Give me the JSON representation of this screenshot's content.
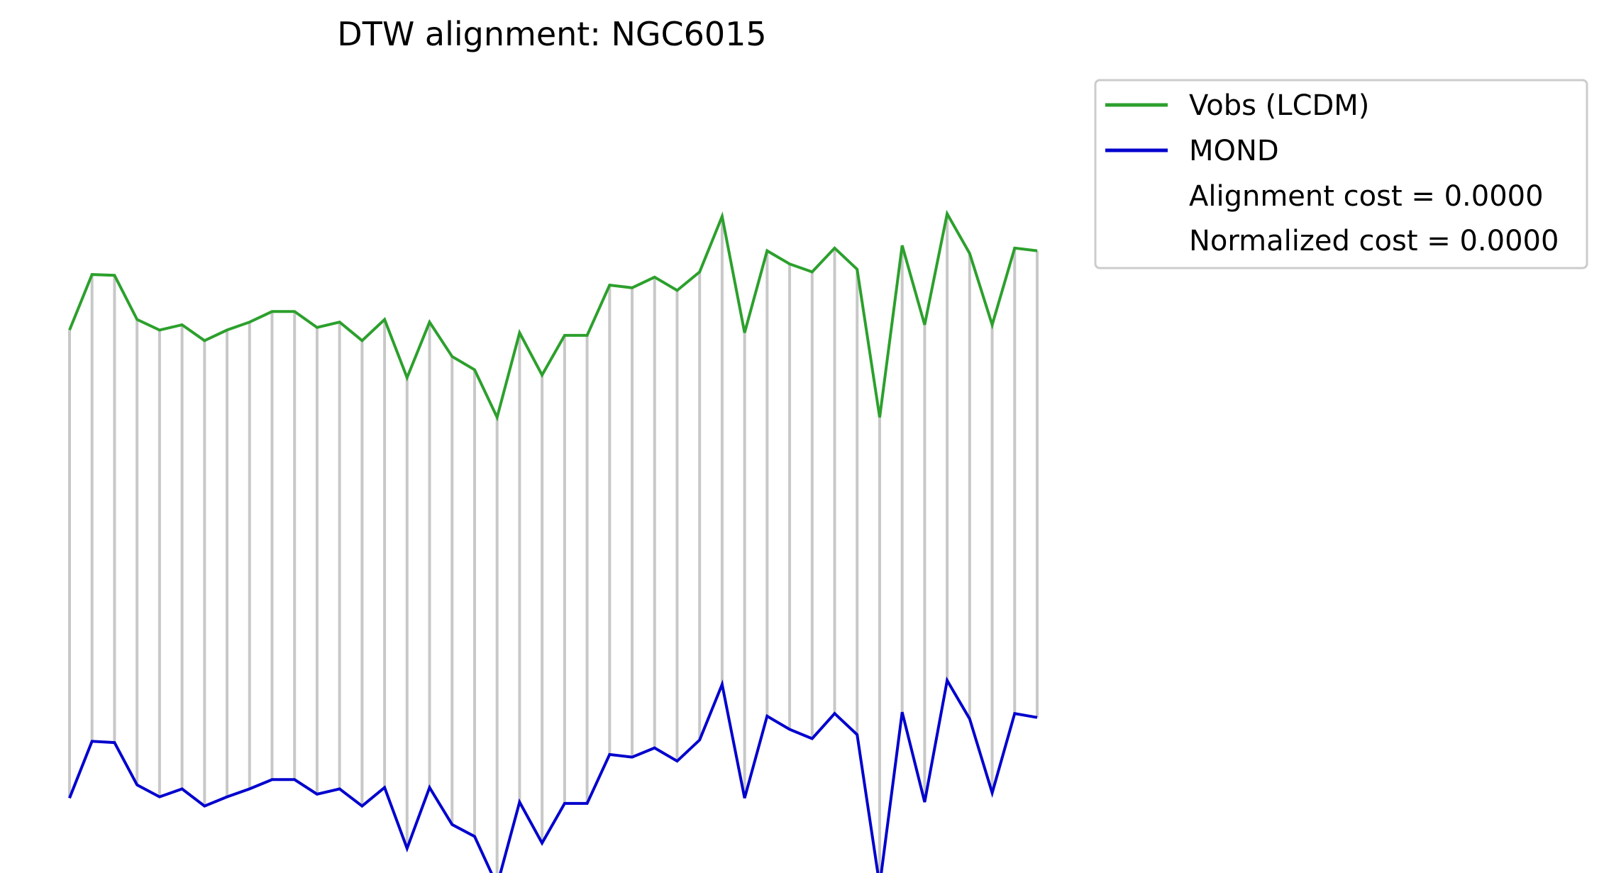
{
  "chart_data": {
    "type": "line",
    "title": "DTW alignment: NGC6015",
    "xlabel": "",
    "ylabel": "",
    "axes_visible": false,
    "grid": false,
    "legend_placement": "outside-top-right",
    "x": [
      0,
      1,
      2,
      3,
      4,
      5,
      6,
      7,
      8,
      9,
      10,
      11,
      12,
      13,
      14,
      15,
      16,
      17,
      18,
      19,
      20,
      21,
      22,
      23,
      24,
      25,
      26,
      27,
      28,
      29,
      30,
      31,
      32,
      33,
      34,
      35,
      36,
      37,
      38,
      39,
      40,
      41,
      42,
      43
    ],
    "ylim": [
      -1.2,
      1.75
    ],
    "series": [
      {
        "name": "Vobs (LCDM)",
        "color": "#2ca02c",
        "values": [
          0.77,
          0.98,
          0.977,
          0.81,
          0.77,
          0.79,
          0.73,
          0.77,
          0.8,
          0.84,
          0.84,
          0.78,
          0.8,
          0.73,
          0.81,
          0.59,
          0.8,
          0.67,
          0.62,
          0.44,
          0.76,
          0.6,
          0.75,
          0.75,
          0.94,
          0.93,
          0.97,
          0.92,
          0.99,
          1.2,
          0.76,
          1.07,
          1.02,
          0.99,
          1.08,
          1.0,
          0.44,
          1.09,
          0.79,
          1.21,
          1.06,
          0.79,
          1.08,
          1.07
        ]
      },
      {
        "name": "MOND",
        "color": "#0000cd",
        "values": [
          -1.0,
          -0.785,
          -0.79,
          -0.95,
          -0.995,
          -0.965,
          -1.03,
          -0.995,
          -0.965,
          -0.93,
          -0.93,
          -0.985,
          -0.965,
          -1.03,
          -0.96,
          -1.19,
          -0.96,
          -1.1,
          -1.145,
          -1.33,
          -1.015,
          -1.17,
          -1.02,
          -1.02,
          -0.835,
          -0.845,
          -0.81,
          -0.86,
          -0.78,
          -0.57,
          -1.0,
          -0.69,
          -0.74,
          -0.775,
          -0.68,
          -0.76,
          -1.33,
          -0.675,
          -1.015,
          -0.555,
          -0.7,
          -0.98,
          -0.68,
          -0.695
        ]
      }
    ],
    "alignment_lines_color": "#c8c8c8",
    "legend": {
      "entries": [
        "Vobs (LCDM)",
        "MOND"
      ],
      "alignment_cost": "Alignment cost = 0.0000",
      "normalized_cost": "Normalized cost = 0.0000"
    }
  }
}
